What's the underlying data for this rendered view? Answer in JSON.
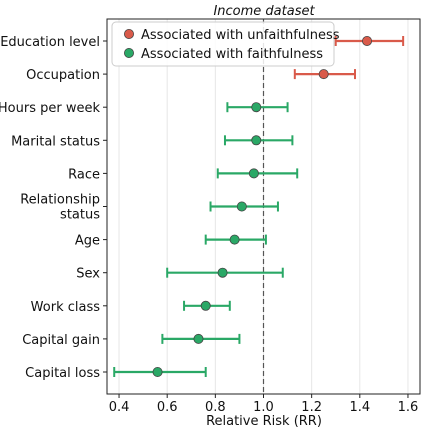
{
  "chart_data": {
    "type": "scatter",
    "title": "Income dataset",
    "xlabel": "Relative Risk (RR)",
    "ylabel": "",
    "xlim": [
      0.35,
      1.65
    ],
    "xticks": [
      "0.4",
      "0.6",
      "0.8",
      "1.0",
      "1.2",
      "1.4",
      "1.6"
    ],
    "reference_line": 1.0,
    "grid": "vertical",
    "legend_position": "top",
    "colors": {
      "unfaithful": "#d95a4a",
      "faithful": "#2aa866"
    },
    "legend": [
      {
        "key": "unfaithful",
        "label": "Associated with unfaithfulness"
      },
      {
        "key": "faithful",
        "label": "Associated with faithfulness"
      }
    ],
    "categories": [
      {
        "label": [
          "Education level"
        ],
        "rr": 1.43,
        "ci": [
          1.3,
          1.58
        ],
        "group": "unfaithful"
      },
      {
        "label": [
          "Occupation"
        ],
        "rr": 1.25,
        "ci": [
          1.13,
          1.38
        ],
        "group": "unfaithful"
      },
      {
        "label": [
          "Hours per week"
        ],
        "rr": 0.97,
        "ci": [
          0.85,
          1.1
        ],
        "group": "faithful"
      },
      {
        "label": [
          "Marital status"
        ],
        "rr": 0.97,
        "ci": [
          0.84,
          1.12
        ],
        "group": "faithful"
      },
      {
        "label": [
          "Race"
        ],
        "rr": 0.96,
        "ci": [
          0.81,
          1.14
        ],
        "group": "faithful"
      },
      {
        "label": [
          "Relationship",
          "status"
        ],
        "rr": 0.91,
        "ci": [
          0.78,
          1.06
        ],
        "group": "faithful"
      },
      {
        "label": [
          "Age"
        ],
        "rr": 0.88,
        "ci": [
          0.76,
          1.01
        ],
        "group": "faithful"
      },
      {
        "label": [
          "Sex"
        ],
        "rr": 0.83,
        "ci": [
          0.6,
          1.08
        ],
        "group": "faithful"
      },
      {
        "label": [
          "Work class"
        ],
        "rr": 0.76,
        "ci": [
          0.67,
          0.86
        ],
        "group": "faithful"
      },
      {
        "label": [
          "Capital gain"
        ],
        "rr": 0.73,
        "ci": [
          0.58,
          0.9
        ],
        "group": "faithful"
      },
      {
        "label": [
          "Capital loss"
        ],
        "rr": 0.56,
        "ci": [
          0.38,
          0.76
        ],
        "group": "faithful"
      }
    ]
  }
}
